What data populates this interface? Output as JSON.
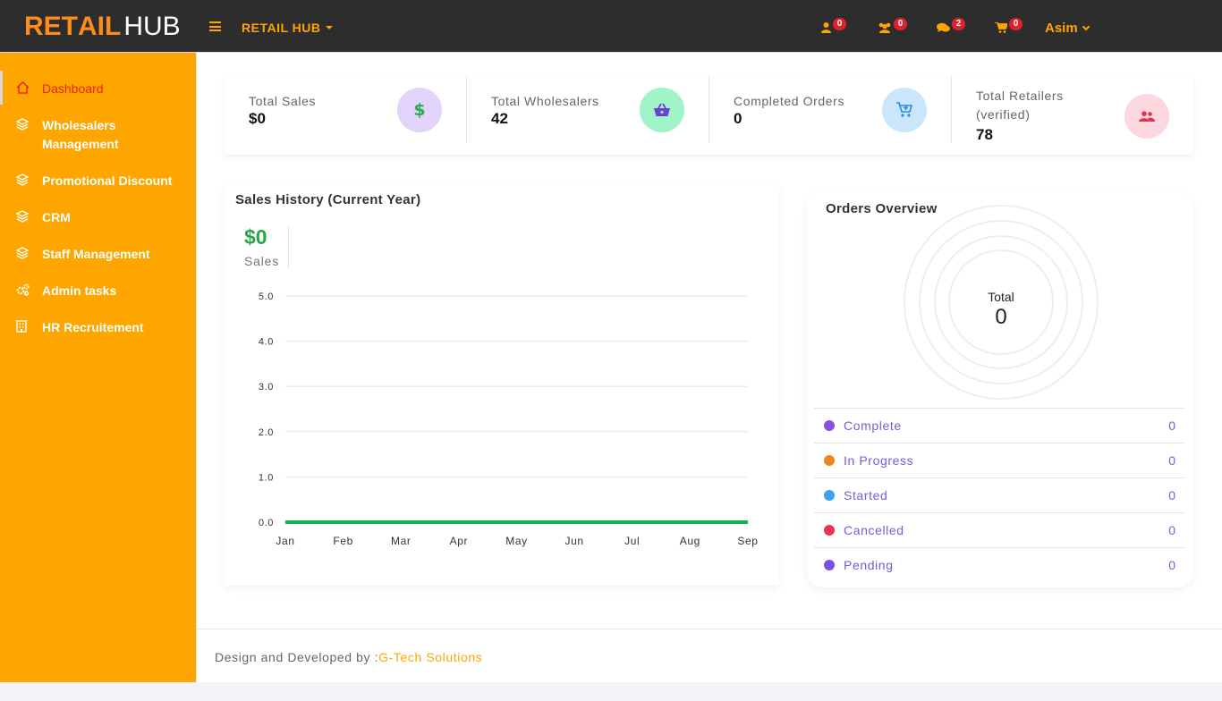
{
  "brand": {
    "logo_part1": "RET",
    "logo_tag": "A",
    "logo_part2": "IL",
    "logo_hub": "HUB",
    "menu_label": "RETAIL HUB"
  },
  "header": {
    "notifications": [
      {
        "icon": "user-icon",
        "count": "0"
      },
      {
        "icon": "users-icon",
        "count": "0"
      },
      {
        "icon": "comments-icon",
        "count": "2"
      },
      {
        "icon": "cart-icon",
        "count": "0"
      }
    ],
    "user_name": "Asim"
  },
  "sidebar": {
    "items": [
      {
        "label": "Dashboard",
        "icon": "home-icon",
        "active": true
      },
      {
        "label": "Wholesalers Management",
        "icon": "layers-icon"
      },
      {
        "label": "Promotional Discount",
        "icon": "layers-icon"
      },
      {
        "label": "CRM",
        "icon": "layers-icon"
      },
      {
        "label": "Staff Management",
        "icon": "layers-icon"
      },
      {
        "label": "Admin tasks",
        "icon": "cogs-icon"
      },
      {
        "label": "HR Recruitement",
        "icon": "building-icon"
      }
    ]
  },
  "stats": [
    {
      "title": "Total Sales",
      "value": "$0",
      "icon": "dollar-icon",
      "bg": "#e2d3fb",
      "fg": "#2eaa55"
    },
    {
      "title": "Total Wholesalers",
      "value": "42",
      "icon": "basket-icon",
      "bg": "#9ff3c6",
      "fg": "#6f3fd6"
    },
    {
      "title": "Completed Orders",
      "value": "0",
      "icon": "cart-plus-icon",
      "bg": "#c9e6fc",
      "fg": "#2a8cdf"
    },
    {
      "title": "Total Retailers (verified)",
      "value": "78",
      "icon": "users-icon",
      "bg": "#fcd7de",
      "fg": "#e0324b"
    }
  ],
  "sales_history": {
    "title": "Sales History (Current Year)",
    "amount": "$0",
    "amount_label": "Sales"
  },
  "chart_data": {
    "type": "line",
    "categories": [
      "Jan",
      "Feb",
      "Mar",
      "Apr",
      "May",
      "Jun",
      "Jul",
      "Aug",
      "Sep"
    ],
    "series": [
      {
        "values": [
          0,
          0,
          0,
          0,
          0,
          0,
          0,
          0,
          0
        ],
        "color": "#16b25a"
      }
    ],
    "yticks": [
      "0.0",
      "1.0",
      "2.0",
      "3.0",
      "4.0",
      "5.0"
    ],
    "ylim": [
      0,
      5
    ],
    "grid": true
  },
  "orders_overview": {
    "title": "Orders Overview",
    "total_label": "Total",
    "total_value": "0",
    "legend": [
      {
        "name": "Complete",
        "count": "0",
        "color": "#8a4fe0"
      },
      {
        "name": "In Progress",
        "count": "0",
        "color": "#f0831e"
      },
      {
        "name": "Started",
        "count": "0",
        "color": "#3d9ff0"
      },
      {
        "name": "Cancelled",
        "count": "0",
        "color": "#ef3154"
      },
      {
        "name": "Pending",
        "count": "0",
        "color": "#7b4fe2"
      }
    ]
  },
  "footer": {
    "text": "Design and Developed by :",
    "link": "G-Tech Solutions"
  }
}
